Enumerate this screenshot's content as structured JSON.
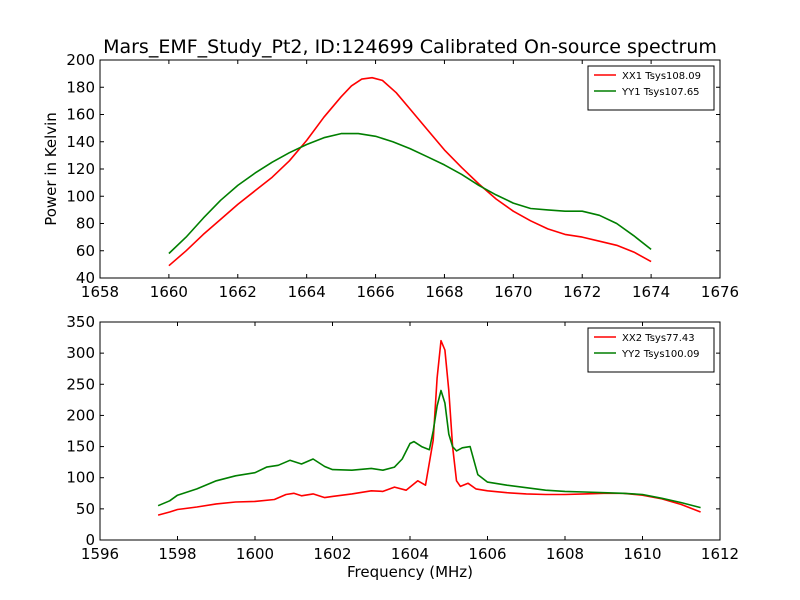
{
  "figure_title": "Mars_EMF_Study_Pt2, ID:124699 Calibrated On-source spectrum",
  "colors": {
    "red": "#ff0000",
    "green": "#007f00"
  },
  "chart_data": [
    {
      "type": "line",
      "title": "Mars_EMF_Study_Pt2, ID:124699 Calibrated On-source spectrum",
      "xlabel": "",
      "ylabel": "Power in Kelvin",
      "xlim": [
        1658,
        1676
      ],
      "ylim": [
        40,
        200
      ],
      "xticks": [
        1658,
        1660,
        1662,
        1664,
        1666,
        1668,
        1670,
        1672,
        1674,
        1676
      ],
      "yticks": [
        40,
        60,
        80,
        100,
        120,
        140,
        160,
        180,
        200
      ],
      "legend_position": "top-right",
      "series": [
        {
          "name": "XX1 Tsys108.09",
          "color": "#ff0000",
          "x": [
            1660.0,
            1660.5,
            1661.0,
            1661.5,
            1662.0,
            1662.5,
            1663.0,
            1663.5,
            1664.0,
            1664.5,
            1665.0,
            1665.3,
            1665.6,
            1665.9,
            1666.2,
            1666.6,
            1667.0,
            1667.5,
            1668.0,
            1668.5,
            1669.0,
            1669.5,
            1670.0,
            1670.5,
            1671.0,
            1671.5,
            1672.0,
            1672.5,
            1673.0,
            1673.5,
            1674.0
          ],
          "y": [
            49,
            60,
            72,
            83,
            94,
            104,
            114,
            126,
            141,
            158,
            173,
            181,
            186,
            187,
            185,
            176,
            164,
            149,
            134,
            121,
            109,
            98,
            89,
            82,
            76,
            72,
            70,
            67,
            64,
            59,
            52
          ]
        },
        {
          "name": "YY1 Tsys107.65",
          "color": "#007f00",
          "x": [
            1660.0,
            1660.5,
            1661.0,
            1661.5,
            1662.0,
            1662.5,
            1663.0,
            1663.5,
            1664.0,
            1664.5,
            1665.0,
            1665.5,
            1666.0,
            1666.5,
            1667.0,
            1667.5,
            1668.0,
            1668.5,
            1669.0,
            1669.5,
            1670.0,
            1670.5,
            1671.0,
            1671.5,
            1672.0,
            1672.5,
            1673.0,
            1673.5,
            1674.0
          ],
          "y": [
            58,
            70,
            84,
            97,
            108,
            117,
            125,
            132,
            138,
            143,
            146,
            146,
            144,
            140,
            135,
            129,
            123,
            116,
            108,
            101,
            95,
            91,
            90,
            89,
            89,
            86,
            80,
            71,
            61
          ]
        }
      ]
    },
    {
      "type": "line",
      "title": "",
      "xlabel": "Frequency (MHz)",
      "ylabel": "",
      "xlim": [
        1596,
        1612
      ],
      "ylim": [
        0,
        350
      ],
      "xticks": [
        1596,
        1598,
        1600,
        1602,
        1604,
        1606,
        1608,
        1610,
        1612
      ],
      "yticks": [
        0,
        50,
        100,
        150,
        200,
        250,
        300,
        350
      ],
      "legend_position": "top-right",
      "series": [
        {
          "name": "XX2 Tsys77.43",
          "color": "#ff0000",
          "x": [
            1597.5,
            1597.8,
            1598.0,
            1598.5,
            1599.0,
            1599.5,
            1600.0,
            1600.5,
            1600.8,
            1601.0,
            1601.2,
            1601.5,
            1601.8,
            1602.0,
            1602.5,
            1603.0,
            1603.3,
            1603.6,
            1603.9,
            1604.2,
            1604.4,
            1604.6,
            1604.7,
            1604.8,
            1604.9,
            1605.0,
            1605.1,
            1605.2,
            1605.3,
            1605.5,
            1605.7,
            1606.0,
            1606.5,
            1607.0,
            1607.5,
            1608.0,
            1608.5,
            1609.0,
            1609.5,
            1610.0,
            1610.5,
            1611.0,
            1611.5
          ],
          "y": [
            40,
            45,
            49,
            53,
            58,
            61,
            62,
            65,
            73,
            75,
            71,
            74,
            68,
            70,
            74,
            79,
            78,
            85,
            80,
            95,
            88,
            160,
            260,
            320,
            305,
            240,
            150,
            95,
            86,
            91,
            82,
            79,
            76,
            74,
            73,
            73,
            74,
            75,
            75,
            72,
            66,
            57,
            45
          ]
        },
        {
          "name": "YY2 Tsys100.09",
          "color": "#007f00",
          "x": [
            1597.5,
            1597.8,
            1598.0,
            1598.5,
            1599.0,
            1599.5,
            1600.0,
            1600.3,
            1600.6,
            1600.9,
            1601.2,
            1601.5,
            1601.8,
            1602.0,
            1602.5,
            1603.0,
            1603.3,
            1603.6,
            1603.8,
            1604.0,
            1604.1,
            1604.3,
            1604.5,
            1604.6,
            1604.7,
            1604.8,
            1604.9,
            1605.0,
            1605.1,
            1605.2,
            1605.35,
            1605.55,
            1605.75,
            1606.0,
            1606.5,
            1607.0,
            1607.5,
            1608.0,
            1608.5,
            1609.0,
            1609.5,
            1610.0,
            1610.5,
            1611.0,
            1611.5
          ],
          "y": [
            55,
            63,
            72,
            82,
            95,
            103,
            108,
            117,
            120,
            128,
            122,
            130,
            118,
            113,
            112,
            115,
            112,
            117,
            130,
            155,
            158,
            150,
            145,
            175,
            215,
            240,
            220,
            170,
            150,
            143,
            148,
            150,
            105,
            93,
            88,
            84,
            80,
            78,
            77,
            76,
            75,
            73,
            67,
            60,
            52
          ]
        }
      ]
    }
  ]
}
